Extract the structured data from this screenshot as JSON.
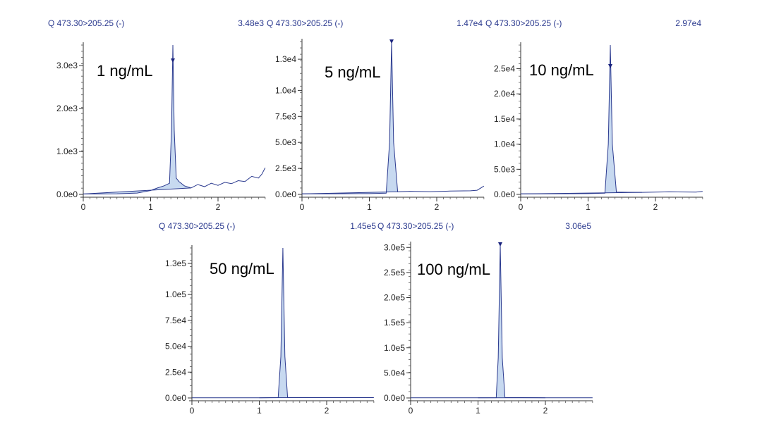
{
  "chart_data": [
    {
      "type": "line",
      "title": "Q 473.30>205.25 (-)",
      "max_intensity": "3.48e3",
      "annotation": "1 ng/mL",
      "xlim": [
        0,
        2.7
      ],
      "x_ticks": [
        0,
        1,
        2
      ],
      "ylim": [
        0,
        3480
      ],
      "y_ticks": [
        {
          "value": 0,
          "label": "0.0e0"
        },
        {
          "value": 1000,
          "label": "1.0e3"
        },
        {
          "value": 2000,
          "label": "2.0e3"
        },
        {
          "value": 3000,
          "label": "3.0e3"
        }
      ],
      "peak_rt": 1.33,
      "peak_marker": true,
      "series": [
        {
          "name": "chromatogram",
          "x": [
            0,
            0.5,
            0.8,
            1.0,
            1.1,
            1.2,
            1.28,
            1.31,
            1.33,
            1.35,
            1.38,
            1.42,
            1.5,
            1.6,
            1.7,
            1.8,
            1.9,
            2.0,
            2.1,
            2.2,
            2.3,
            2.4,
            2.5,
            2.6,
            2.65,
            2.7
          ],
          "y": [
            10,
            15,
            30,
            90,
            150,
            200,
            260,
            1500,
            3480,
            1500,
            380,
            300,
            200,
            150,
            230,
            180,
            260,
            210,
            280,
            250,
            320,
            300,
            420,
            380,
            470,
            620
          ]
        }
      ]
    },
    {
      "type": "line",
      "title": "Q 473.30>205.25 (-)",
      "max_intensity": "1.47e4",
      "annotation": "5 ng/mL",
      "xlim": [
        0,
        2.7
      ],
      "x_ticks": [
        0,
        1,
        2
      ],
      "ylim": [
        0,
        14700
      ],
      "y_ticks": [
        {
          "value": 0,
          "label": "0.0e0"
        },
        {
          "value": 2500,
          "label": "2.5e3"
        },
        {
          "value": 5000,
          "label": "5.0e3"
        },
        {
          "value": 7500,
          "label": "7.5e3"
        },
        {
          "value": 10000,
          "label": "1.0e4"
        },
        {
          "value": 13000,
          "label": "1.3e4"
        }
      ],
      "peak_rt": 1.33,
      "peak_marker": true,
      "series": [
        {
          "name": "chromatogram",
          "x": [
            0,
            0.5,
            1.0,
            1.25,
            1.3,
            1.33,
            1.36,
            1.42,
            1.6,
            1.9,
            2.2,
            2.5,
            2.6,
            2.7
          ],
          "y": [
            50,
            60,
            80,
            120,
            5000,
            14700,
            5000,
            250,
            300,
            260,
            320,
            350,
            400,
            800
          ]
        }
      ]
    },
    {
      "type": "line",
      "title": "Q 473.30>205.25 (-)",
      "max_intensity": "2.97e4",
      "annotation": "10 ng/mL",
      "xlim": [
        0,
        2.7
      ],
      "x_ticks": [
        0,
        1,
        2
      ],
      "ylim": [
        0,
        29700
      ],
      "y_ticks": [
        {
          "value": 0,
          "label": "0.0e0"
        },
        {
          "value": 5000,
          "label": "5.0e3"
        },
        {
          "value": 10000,
          "label": "1.0e4"
        },
        {
          "value": 15000,
          "label": "1.5e4"
        },
        {
          "value": 20000,
          "label": "2.0e4"
        },
        {
          "value": 25000,
          "label": "2.5e4"
        }
      ],
      "peak_rt": 1.33,
      "peak_marker": true,
      "series": [
        {
          "name": "chromatogram",
          "x": [
            0,
            0.5,
            1.0,
            1.25,
            1.3,
            1.33,
            1.36,
            1.42,
            1.8,
            2.2,
            2.6,
            2.7
          ],
          "y": [
            100,
            120,
            150,
            250,
            10000,
            29700,
            10000,
            450,
            400,
            500,
            450,
            600
          ]
        }
      ]
    },
    {
      "type": "line",
      "title": "Q 473.30>205.25 (-)",
      "max_intensity": "1.45e5",
      "annotation": "50 ng/mL",
      "xlim": [
        0,
        2.7
      ],
      "x_ticks": [
        0,
        1,
        2
      ],
      "ylim": [
        0,
        145000
      ],
      "y_ticks": [
        {
          "value": 0,
          "label": "0.0e0"
        },
        {
          "value": 25000,
          "label": "2.5e4"
        },
        {
          "value": 50000,
          "label": "5.0e4"
        },
        {
          "value": 75000,
          "label": "7.5e4"
        },
        {
          "value": 100000,
          "label": "1.0e5"
        },
        {
          "value": 130000,
          "label": "1.3e5"
        }
      ],
      "peak_rt": 1.35,
      "peak_marker": false,
      "series": [
        {
          "name": "chromatogram",
          "x": [
            0,
            1.0,
            1.28,
            1.32,
            1.35,
            1.38,
            1.42,
            2.0,
            2.7
          ],
          "y": [
            200,
            200,
            300,
            40000,
            145000,
            40000,
            500,
            300,
            300
          ]
        }
      ]
    },
    {
      "type": "line",
      "title": "Q 473.30>205.25 (-)",
      "max_intensity": "3.06e5",
      "annotation": "100 ng/mL",
      "xlim": [
        0,
        2.7
      ],
      "x_ticks": [
        0,
        1,
        2
      ],
      "ylim": [
        0,
        306000
      ],
      "y_ticks": [
        {
          "value": 0,
          "label": "0.0e0"
        },
        {
          "value": 50000,
          "label": "5.0e4"
        },
        {
          "value": 100000,
          "label": "1.0e5"
        },
        {
          "value": 150000,
          "label": "1.5e5"
        },
        {
          "value": 200000,
          "label": "2.0e5"
        },
        {
          "value": 250000,
          "label": "2.5e5"
        },
        {
          "value": 300000,
          "label": "3.0e5"
        }
      ],
      "peak_rt": 1.33,
      "peak_marker": true,
      "series": [
        {
          "name": "chromatogram",
          "x": [
            0,
            1.0,
            1.27,
            1.3,
            1.33,
            1.36,
            1.4,
            2.0,
            2.7
          ],
          "y": [
            300,
            300,
            500,
            80000,
            306000,
            80000,
            800,
            400,
            400
          ]
        }
      ]
    }
  ]
}
